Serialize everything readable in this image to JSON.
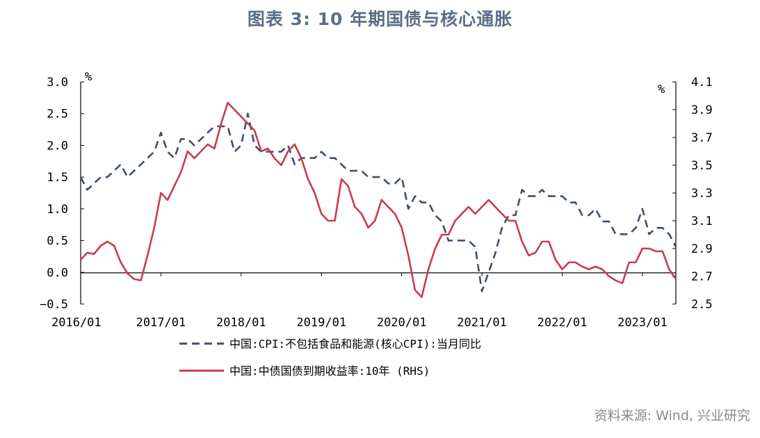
{
  "title": "图表 3:  10 年期国债与核心通胀",
  "source": "资料来源:  Wind, 兴业研究",
  "colors": {
    "core_cpi": "#3f4e6b",
    "bond_yield": "#c83b4d"
  },
  "chart_data": {
    "type": "line",
    "title": "图表 3:  10 年期国债与核心通胀",
    "left_axis": {
      "unit": "%",
      "range": [
        -0.5,
        3.0
      ],
      "ticks": [
        "3.0",
        "2.5",
        "2.0",
        "1.5",
        "1.0",
        "0.5",
        "0.0",
        "−0.5"
      ],
      "tick_values": [
        3.0,
        2.5,
        2.0,
        1.5,
        1.0,
        0.5,
        0.0,
        -0.5
      ]
    },
    "right_axis": {
      "unit": "%",
      "range": [
        2.5,
        4.1
      ],
      "ticks": [
        "4.1",
        "3.9",
        "3.7",
        "3.5",
        "3.3",
        "3.1",
        "2.9",
        "2.7",
        "2.5"
      ],
      "tick_values": [
        4.1,
        3.9,
        3.7,
        3.5,
        3.3,
        3.1,
        2.9,
        2.7,
        2.5
      ]
    },
    "x_axis": {
      "range": [
        "2016-01",
        "2023-06"
      ],
      "ticks": [
        "2016/01",
        "2017/01",
        "2018/01",
        "2019/01",
        "2020/01",
        "2021/01",
        "2022/01",
        "2023/01"
      ]
    },
    "legend_position": "bottom",
    "series": [
      {
        "name": "中国:CPI:不包括食品和能源(核心CPI):当月同比",
        "axis": "left",
        "style": "dashed",
        "color": "#3f4e6b",
        "x": [
          "2016-01",
          "2016-02",
          "2016-03",
          "2016-04",
          "2016-05",
          "2016-06",
          "2016-07",
          "2016-08",
          "2016-09",
          "2016-10",
          "2016-11",
          "2016-12",
          "2017-01",
          "2017-02",
          "2017-03",
          "2017-04",
          "2017-05",
          "2017-06",
          "2017-07",
          "2017-08",
          "2017-09",
          "2017-10",
          "2017-11",
          "2017-12",
          "2018-01",
          "2018-02",
          "2018-03",
          "2018-04",
          "2018-05",
          "2018-06",
          "2018-07",
          "2018-08",
          "2018-09",
          "2018-10",
          "2018-11",
          "2018-12",
          "2019-01",
          "2019-02",
          "2019-03",
          "2019-04",
          "2019-05",
          "2019-06",
          "2019-07",
          "2019-08",
          "2019-09",
          "2019-10",
          "2019-11",
          "2019-12",
          "2020-01",
          "2020-02",
          "2020-03",
          "2020-04",
          "2020-05",
          "2020-06",
          "2020-07",
          "2020-08",
          "2020-09",
          "2020-10",
          "2020-11",
          "2020-12",
          "2021-01",
          "2021-02",
          "2021-03",
          "2021-04",
          "2021-05",
          "2021-06",
          "2021-07",
          "2021-08",
          "2021-09",
          "2021-10",
          "2021-11",
          "2021-12",
          "2022-01",
          "2022-02",
          "2022-03",
          "2022-04",
          "2022-05",
          "2022-06",
          "2022-07",
          "2022-08",
          "2022-09",
          "2022-10",
          "2022-11",
          "2022-12",
          "2023-01",
          "2023-02",
          "2023-03",
          "2023-04",
          "2023-05",
          "2023-06"
        ],
        "values": [
          1.5,
          1.3,
          1.4,
          1.5,
          1.5,
          1.6,
          1.7,
          1.5,
          1.6,
          1.7,
          1.8,
          1.9,
          2.2,
          1.9,
          1.8,
          2.1,
          2.1,
          2.0,
          2.1,
          2.2,
          2.3,
          2.3,
          2.3,
          1.9,
          2.0,
          2.5,
          2.0,
          1.9,
          1.9,
          1.9,
          1.9,
          2.0,
          1.7,
          1.8,
          1.8,
          1.8,
          1.9,
          1.8,
          1.8,
          1.7,
          1.6,
          1.6,
          1.6,
          1.5,
          1.5,
          1.5,
          1.4,
          1.4,
          1.5,
          1.0,
          1.2,
          1.1,
          1.1,
          0.9,
          0.8,
          0.5,
          0.5,
          0.5,
          0.5,
          0.4,
          -0.3,
          0.0,
          0.3,
          0.7,
          0.9,
          0.9,
          1.3,
          1.2,
          1.2,
          1.3,
          1.2,
          1.2,
          1.2,
          1.1,
          1.1,
          0.9,
          0.9,
          1.0,
          0.8,
          0.8,
          0.6,
          0.6,
          0.6,
          0.7,
          1.0,
          0.6,
          0.7,
          0.7,
          0.6,
          0.4
        ]
      },
      {
        "name": "中国:中债国债到期收益率:10年 (RHS)",
        "axis": "right",
        "style": "solid",
        "color": "#c83b4d",
        "x": [
          "2016-01",
          "2016-02",
          "2016-03",
          "2016-04",
          "2016-05",
          "2016-06",
          "2016-07",
          "2016-08",
          "2016-09",
          "2016-10",
          "2016-11",
          "2016-12",
          "2017-01",
          "2017-02",
          "2017-03",
          "2017-04",
          "2017-05",
          "2017-06",
          "2017-07",
          "2017-08",
          "2017-09",
          "2017-10",
          "2017-11",
          "2017-12",
          "2018-01",
          "2018-02",
          "2018-03",
          "2018-04",
          "2018-05",
          "2018-06",
          "2018-07",
          "2018-08",
          "2018-09",
          "2018-10",
          "2018-11",
          "2018-12",
          "2019-01",
          "2019-02",
          "2019-03",
          "2019-04",
          "2019-05",
          "2019-06",
          "2019-07",
          "2019-08",
          "2019-09",
          "2019-10",
          "2019-11",
          "2019-12",
          "2020-01",
          "2020-02",
          "2020-03",
          "2020-04",
          "2020-05",
          "2020-06",
          "2020-07",
          "2020-08",
          "2020-09",
          "2020-10",
          "2020-11",
          "2020-12",
          "2021-01",
          "2021-02",
          "2021-03",
          "2021-04",
          "2021-05",
          "2021-06",
          "2021-07",
          "2021-08",
          "2021-09",
          "2021-10",
          "2021-11",
          "2021-12",
          "2022-01",
          "2022-02",
          "2022-03",
          "2022-04",
          "2022-05",
          "2022-06",
          "2022-07",
          "2022-08",
          "2022-09",
          "2022-10",
          "2022-11",
          "2022-12",
          "2023-01",
          "2023-02",
          "2023-03",
          "2023-04",
          "2023-05",
          "2023-06"
        ],
        "values": [
          2.82,
          2.87,
          2.86,
          2.92,
          2.95,
          2.92,
          2.8,
          2.72,
          2.68,
          2.67,
          2.85,
          3.05,
          3.3,
          3.25,
          3.35,
          3.45,
          3.6,
          3.55,
          3.6,
          3.65,
          3.62,
          3.8,
          3.95,
          3.9,
          3.85,
          3.8,
          3.75,
          3.6,
          3.62,
          3.55,
          3.5,
          3.6,
          3.65,
          3.55,
          3.4,
          3.3,
          3.15,
          3.1,
          3.1,
          3.4,
          3.35,
          3.2,
          3.15,
          3.05,
          3.1,
          3.25,
          3.2,
          3.15,
          3.05,
          2.85,
          2.6,
          2.55,
          2.75,
          2.9,
          3.0,
          3.0,
          3.1,
          3.15,
          3.2,
          3.15,
          3.2,
          3.25,
          3.2,
          3.15,
          3.1,
          3.1,
          2.95,
          2.85,
          2.87,
          2.95,
          2.95,
          2.82,
          2.75,
          2.8,
          2.8,
          2.77,
          2.75,
          2.77,
          2.75,
          2.7,
          2.67,
          2.65,
          2.8,
          2.8,
          2.9,
          2.9,
          2.88,
          2.88,
          2.75,
          2.68
        ]
      }
    ]
  }
}
